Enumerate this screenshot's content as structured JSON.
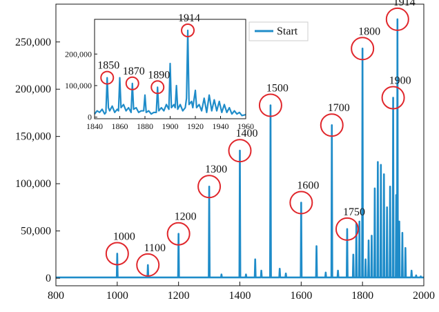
{
  "colors": {
    "series": "#1f8cc9",
    "annotation": "#e0262b",
    "axis": "#111111",
    "background": "#ffffff"
  },
  "chart_data": [
    {
      "type": "line",
      "role": "main",
      "title": "",
      "xlabel": "",
      "ylabel": "",
      "xlim": [
        800,
        2000
      ],
      "ylim": [
        -8000,
        290000
      ],
      "grid": false,
      "legend": {
        "placement": "top-center",
        "entries": [
          "Start"
        ]
      },
      "xticks": [
        {
          "value": 800,
          "label": "800"
        },
        {
          "value": 1000,
          "label": "1000"
        },
        {
          "value": 1200,
          "label": "1200"
        },
        {
          "value": 1400,
          "label": "1400"
        },
        {
          "value": 1600,
          "label": "1600"
        },
        {
          "value": 1800,
          "label": "1800"
        },
        {
          "value": 2000,
          "label": "2000"
        }
      ],
      "yticks": [
        {
          "value": 0,
          "label": "0"
        },
        {
          "value": 50000,
          "label": "50,000"
        },
        {
          "value": 100000,
          "label": "100,000"
        },
        {
          "value": 150000,
          "label": "150,000"
        },
        {
          "value": 200000,
          "label": "200,000"
        },
        {
          "value": 250000,
          "label": "250,000"
        }
      ],
      "series": [
        {
          "name": "Start",
          "baseline": 800,
          "peaks": [
            [
              1000,
              26000
            ],
            [
              1100,
              14000
            ],
            [
              1200,
              47000
            ],
            [
              1300,
              97000
            ],
            [
              1340,
              4000
            ],
            [
              1400,
              135000
            ],
            [
              1420,
              4000
            ],
            [
              1450,
              20000
            ],
            [
              1470,
              8000
            ],
            [
              1500,
              183000
            ],
            [
              1530,
              10000
            ],
            [
              1550,
              5000
            ],
            [
              1600,
              80000
            ],
            [
              1650,
              34000
            ],
            [
              1680,
              6000
            ],
            [
              1700,
              162000
            ],
            [
              1720,
              8000
            ],
            [
              1750,
              52000
            ],
            [
              1770,
              25000
            ],
            [
              1780,
              58000
            ],
            [
              1790,
              60000
            ],
            [
              1800,
              243000
            ],
            [
              1810,
              20000
            ],
            [
              1820,
              40000
            ],
            [
              1830,
              45000
            ],
            [
              1840,
              95000
            ],
            [
              1850,
              123000
            ],
            [
              1860,
              120000
            ],
            [
              1870,
              110000
            ],
            [
              1880,
              75000
            ],
            [
              1890,
              97000
            ],
            [
              1900,
              191000
            ],
            [
              1910,
              88000
            ],
            [
              1914,
              274000
            ],
            [
              1920,
              60000
            ],
            [
              1930,
              48000
            ],
            [
              1940,
              32000
            ],
            [
              1960,
              8000
            ],
            [
              1975,
              3000
            ],
            [
              1990,
              2000
            ]
          ]
        }
      ],
      "annotations": [
        {
          "label": "1000",
          "x": 1000,
          "y": 26000
        },
        {
          "label": "1100",
          "x": 1100,
          "y": 14000
        },
        {
          "label": "1200",
          "x": 1200,
          "y": 47000
        },
        {
          "label": "1300",
          "x": 1300,
          "y": 97000
        },
        {
          "label": "1400",
          "x": 1400,
          "y": 135000
        },
        {
          "label": "1500",
          "x": 1500,
          "y": 183000
        },
        {
          "label": "1600",
          "x": 1600,
          "y": 80000
        },
        {
          "label": "1700",
          "x": 1700,
          "y": 162000
        },
        {
          "label": "1750",
          "x": 1750,
          "y": 52000
        },
        {
          "label": "1800",
          "x": 1800,
          "y": 243000
        },
        {
          "label": "1900",
          "x": 1900,
          "y": 191000
        },
        {
          "label": "1914",
          "x": 1914,
          "y": 274000
        }
      ]
    },
    {
      "type": "line",
      "role": "inset",
      "title": "",
      "xlabel": "",
      "ylabel": "",
      "xlim": [
        1840,
        1960
      ],
      "ylim": [
        -5000,
        310000
      ],
      "grid": false,
      "xticks": [
        {
          "value": 1840,
          "label": "1840"
        },
        {
          "value": 1860,
          "label": "1860"
        },
        {
          "value": 1880,
          "label": "1880"
        },
        {
          "value": 1900,
          "label": "1900"
        },
        {
          "value": 1920,
          "label": "1920"
        },
        {
          "value": 1940,
          "label": "1940"
        },
        {
          "value": 1960,
          "label": "1960"
        }
      ],
      "yticks": [
        {
          "value": 0,
          "label": "0"
        },
        {
          "value": 100000,
          "label": "100,000"
        },
        {
          "value": 200000,
          "label": "200,000"
        }
      ],
      "series": [
        {
          "name": "Start",
          "points": [
            [
              1840,
              10000
            ],
            [
              1842,
              20000
            ],
            [
              1844,
              15000
            ],
            [
              1846,
              25000
            ],
            [
              1848,
              10000
            ],
            [
              1849,
              15000
            ],
            [
              1850,
              125000
            ],
            [
              1851,
              30000
            ],
            [
              1852,
              20000
            ],
            [
              1854,
              35000
            ],
            [
              1856,
              15000
            ],
            [
              1858,
              25000
            ],
            [
              1859,
              20000
            ],
            [
              1860,
              125000
            ],
            [
              1861,
              30000
            ],
            [
              1863,
              40000
            ],
            [
              1865,
              20000
            ],
            [
              1867,
              30000
            ],
            [
              1869,
              15000
            ],
            [
              1870,
              107000
            ],
            [
              1871,
              25000
            ],
            [
              1873,
              30000
            ],
            [
              1875,
              15000
            ],
            [
              1877,
              20000
            ],
            [
              1879,
              20000
            ],
            [
              1880,
              70000
            ],
            [
              1881,
              15000
            ],
            [
              1883,
              20000
            ],
            [
              1885,
              10000
            ],
            [
              1887,
              15000
            ],
            [
              1889,
              15000
            ],
            [
              1890,
              95000
            ],
            [
              1891,
              20000
            ],
            [
              1893,
              30000
            ],
            [
              1895,
              20000
            ],
            [
              1897,
              40000
            ],
            [
              1899,
              25000
            ],
            [
              1900,
              170000
            ],
            [
              1901,
              30000
            ],
            [
              1903,
              40000
            ],
            [
              1904,
              30000
            ],
            [
              1905,
              100000
            ],
            [
              1906,
              25000
            ],
            [
              1908,
              40000
            ],
            [
              1910,
              20000
            ],
            [
              1912,
              30000
            ],
            [
              1913,
              60000
            ],
            [
              1914,
              275000
            ],
            [
              1915,
              40000
            ],
            [
              1917,
              50000
            ],
            [
              1918,
              30000
            ],
            [
              1920,
              85000
            ],
            [
              1921,
              30000
            ],
            [
              1923,
              40000
            ],
            [
              1925,
              20000
            ],
            [
              1927,
              60000
            ],
            [
              1929,
              15000
            ],
            [
              1931,
              70000
            ],
            [
              1933,
              20000
            ],
            [
              1935,
              55000
            ],
            [
              1937,
              20000
            ],
            [
              1939,
              50000
            ],
            [
              1941,
              15000
            ],
            [
              1943,
              40000
            ],
            [
              1945,
              15000
            ],
            [
              1947,
              30000
            ],
            [
              1949,
              10000
            ],
            [
              1951,
              20000
            ],
            [
              1953,
              10000
            ],
            [
              1955,
              15000
            ],
            [
              1957,
              5000
            ],
            [
              1960,
              8000
            ]
          ]
        }
      ],
      "annotations": [
        {
          "label": "1850",
          "x": 1850,
          "y": 125000
        },
        {
          "label": "1870",
          "x": 1870,
          "y": 107000
        },
        {
          "label": "1890",
          "x": 1890,
          "y": 95000
        },
        {
          "label": "1914",
          "x": 1914,
          "y": 275000
        }
      ]
    }
  ]
}
